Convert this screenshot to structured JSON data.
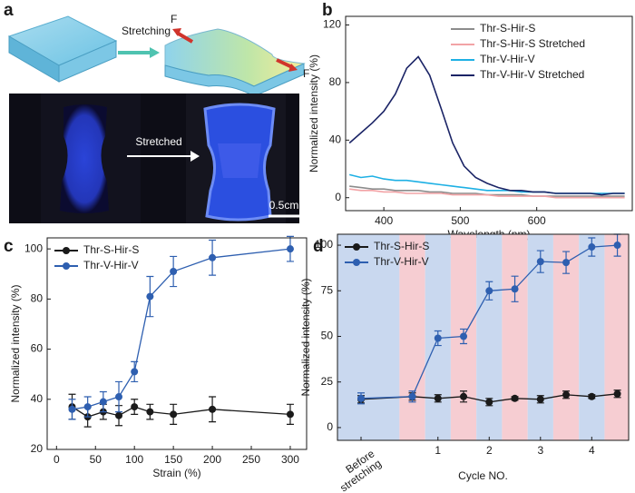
{
  "panel_labels": [
    "a",
    "b",
    "c",
    "d"
  ],
  "figure_a": {
    "stretching_label": "Stretching",
    "force_labels": [
      "F",
      "F"
    ],
    "photo_label": "Stretched",
    "scale_bar": "0.5cm"
  },
  "chart_data": [
    {
      "type": "line",
      "xlabel": "Wavelength (nm)",
      "ylabel": "Normalized intensity (%)",
      "x": [
        355,
        370,
        385,
        400,
        415,
        430,
        445,
        460,
        475,
        490,
        505,
        520,
        535,
        550,
        565,
        580,
        595,
        610,
        625,
        640,
        655,
        670,
        685,
        700,
        715
      ],
      "xlim": [
        350,
        725
      ],
      "ylim": [
        -9,
        126
      ],
      "xticks": [
        400,
        500,
        600
      ],
      "yticks": [
        0,
        40,
        80,
        120
      ],
      "legend": "upper right",
      "markers": false,
      "series": [
        {
          "name": "Thr-S-Hir-S",
          "color": "#8c8c8c",
          "values": [
            8,
            7,
            6,
            6,
            5,
            5,
            5,
            4,
            4,
            3,
            3,
            3,
            2,
            2,
            2,
            2,
            1,
            1,
            1,
            1,
            1,
            1,
            1,
            1,
            1
          ]
        },
        {
          "name": "Thr-S-Hir-S Stretched",
          "color": "#f2a3a6",
          "values": [
            6,
            5,
            5,
            4,
            4,
            3,
            3,
            3,
            3,
            2,
            2,
            2,
            2,
            1,
            1,
            1,
            1,
            1,
            0,
            0,
            0,
            0,
            0,
            0,
            0
          ]
        },
        {
          "name": "Thr-V-Hir-V",
          "color": "#1eb0e4",
          "values": [
            16,
            14,
            15,
            13,
            12,
            12,
            11,
            10,
            9,
            8,
            7,
            6,
            5,
            5,
            5,
            4,
            4,
            4,
            3,
            3,
            3,
            3,
            3,
            3,
            3
          ]
        },
        {
          "name": "Thr-V-Hir-V Stretched",
          "color": "#1b2466",
          "values": [
            38,
            45,
            52,
            60,
            72,
            90,
            98,
            85,
            62,
            38,
            22,
            14,
            10,
            7,
            5,
            5,
            4,
            4,
            3,
            3,
            3,
            3,
            2,
            3,
            3
          ]
        }
      ]
    },
    {
      "type": "line",
      "xlabel": "Strain (%)",
      "ylabel": "Normalized intensity (%)",
      "x": [
        20,
        40,
        60,
        80,
        100,
        120,
        150,
        200,
        300
      ],
      "xlim": [
        -12,
        321
      ],
      "ylim": [
        20,
        104.4
      ],
      "xticks": [
        0,
        50,
        100,
        150,
        200,
        250,
        300
      ],
      "yticks": [
        20,
        40,
        60,
        80,
        100
      ],
      "legend": "upper left",
      "markers": true,
      "series": [
        {
          "name": "Thr-S-Hir-S",
          "color": "#1a1a1a",
          "values": [
            37,
            33,
            35,
            33.5,
            37,
            35,
            34,
            36,
            34
          ],
          "errors": [
            5,
            4,
            3,
            4,
            3,
            3,
            4,
            5,
            4
          ]
        },
        {
          "name": "Thr-V-Hir-V",
          "color": "#2e5fb0",
          "values": [
            36,
            37,
            39,
            41,
            51,
            81,
            91,
            96.5,
            100
          ],
          "errors": [
            4,
            4,
            4,
            6,
            4,
            8,
            6,
            7,
            5
          ]
        }
      ]
    },
    {
      "type": "line",
      "xlabel": "Cycle NO.",
      "ylabel": "Normalized intensity (%)",
      "x": [
        -0.5,
        0.5,
        1,
        1.5,
        2,
        2.5,
        3,
        3.5,
        4,
        4.5
      ],
      "xlim": [
        -0.96,
        4.72
      ],
      "ylim": [
        -7,
        106
      ],
      "xticks": [
        {
          "value": -0.5,
          "label": "Before stretching"
        },
        1,
        2,
        3,
        4
      ],
      "yticks": [
        0,
        25,
        50,
        75,
        100
      ],
      "legend": "upper left",
      "markers": true,
      "band_colors": [
        "#c9d8ef",
        "#f6cdd2"
      ],
      "series": [
        {
          "name": "Thr-S-Hir-S",
          "color": "#1a1a1a",
          "values": [
            15.5,
            17,
            16,
            17,
            14,
            16,
            15.5,
            18,
            17,
            18.5
          ],
          "errors": [
            2,
            2,
            2,
            3,
            2,
            1,
            2,
            2,
            1,
            2
          ]
        },
        {
          "name": "Thr-V-Hir-V",
          "color": "#2e5fb0",
          "values": [
            16,
            17,
            49,
            50,
            75,
            76,
            91,
            90.5,
            99,
            100
          ],
          "errors": [
            3,
            3,
            4,
            4,
            5,
            7,
            6,
            6,
            5,
            6
          ]
        }
      ]
    }
  ]
}
